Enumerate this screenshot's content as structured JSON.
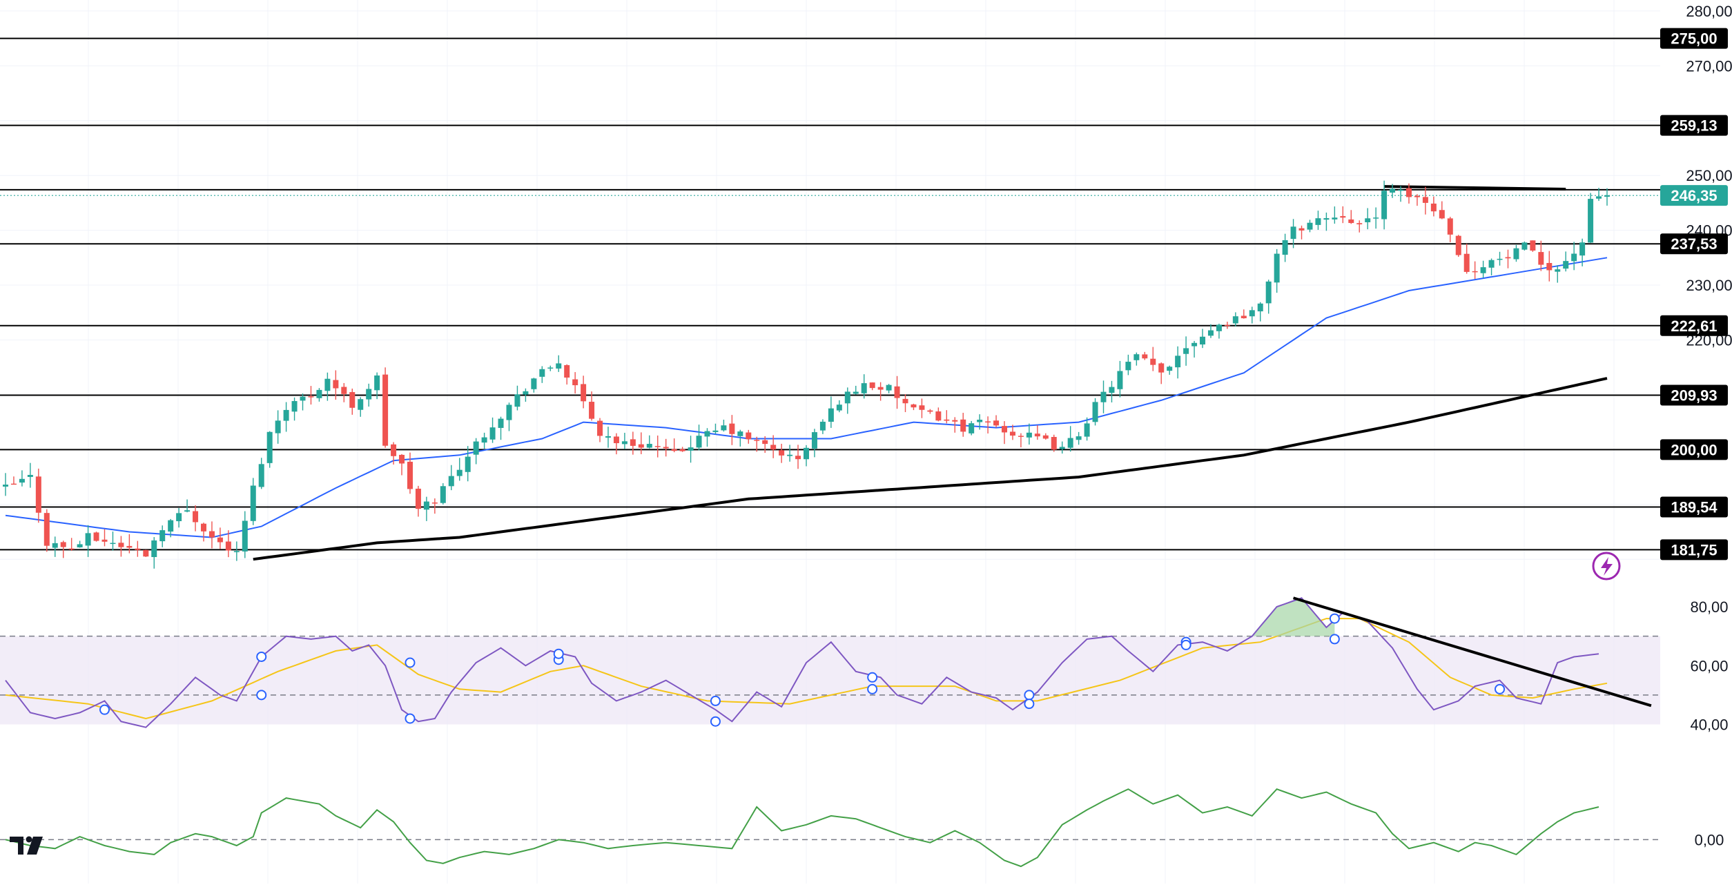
{
  "chart_data": [
    {
      "type": "candlestick",
      "panel": "price",
      "title": "",
      "xlabel": "",
      "ylabel": "",
      "ylim": [
        176,
        282
      ],
      "y_ticks": [
        {
          "value": 280,
          "label": "280,00"
        },
        {
          "value": 270,
          "label": "270,00"
        },
        {
          "value": 250,
          "label": "250,00"
        },
        {
          "value": 240,
          "label": "240,00"
        },
        {
          "value": 230,
          "label": "230,00"
        },
        {
          "value": 220,
          "label": "220,00"
        }
      ],
      "horizontal_levels": [
        {
          "value": 275.0,
          "label": "275,00"
        },
        {
          "value": 259.13,
          "label": "259,13"
        },
        {
          "value": 247.4,
          "label": ""
        },
        {
          "value": 237.53,
          "label": "237,53"
        },
        {
          "value": 222.61,
          "label": "222,61"
        },
        {
          "value": 209.93,
          "label": "209,93"
        },
        {
          "value": 200.0,
          "label": "200,00"
        },
        {
          "value": 189.54,
          "label": "189,54"
        },
        {
          "value": 181.75,
          "label": "181,75"
        }
      ],
      "last_price": {
        "value": 246.35,
        "label": "246,35"
      },
      "candle_anchors": [
        [
          0,
          193
        ],
        [
          3,
          195
        ],
        [
          5,
          183
        ],
        [
          8,
          182
        ],
        [
          10,
          184
        ],
        [
          13,
          183
        ],
        [
          17,
          181
        ],
        [
          19,
          186
        ],
        [
          22,
          189
        ],
        [
          25,
          184
        ],
        [
          28,
          181
        ],
        [
          30,
          193
        ],
        [
          32,
          203
        ],
        [
          34,
          208
        ],
        [
          37,
          210
        ],
        [
          39,
          213
        ],
        [
          42,
          208
        ],
        [
          45,
          213
        ],
        [
          46,
          201
        ],
        [
          48,
          197
        ],
        [
          50,
          189
        ],
        [
          52,
          191
        ],
        [
          55,
          197
        ],
        [
          58,
          203
        ],
        [
          61,
          208
        ],
        [
          64,
          213
        ],
        [
          67,
          216
        ],
        [
          69,
          211
        ],
        [
          72,
          203
        ],
        [
          75,
          201
        ],
        [
          78,
          201
        ],
        [
          81,
          199
        ],
        [
          84,
          202
        ],
        [
          87,
          204
        ],
        [
          90,
          202
        ],
        [
          93,
          200
        ],
        [
          96,
          198
        ],
        [
          98,
          203
        ],
        [
          101,
          209
        ],
        [
          104,
          212
        ],
        [
          107,
          211
        ],
        [
          110,
          207
        ],
        [
          113,
          206
        ],
        [
          116,
          204
        ],
        [
          119,
          205
        ],
        [
          122,
          203
        ],
        [
          125,
          202
        ],
        [
          128,
          200
        ],
        [
          130,
          203
        ],
        [
          132,
          208
        ],
        [
          135,
          214
        ],
        [
          137,
          217
        ],
        [
          140,
          214
        ],
        [
          143,
          219
        ],
        [
          146,
          222
        ],
        [
          149,
          224
        ],
        [
          152,
          226
        ],
        [
          154,
          236
        ],
        [
          156,
          240
        ],
        [
          159,
          242
        ],
        [
          162,
          243
        ],
        [
          164,
          241
        ],
        [
          166,
          242
        ],
        [
          167,
          248
        ],
        [
          168,
          247
        ],
        [
          171,
          246
        ],
        [
          173,
          244
        ],
        [
          175,
          240
        ],
        [
          177,
          232
        ],
        [
          179,
          234
        ],
        [
          182,
          235
        ],
        [
          184,
          237
        ],
        [
          186,
          234
        ],
        [
          188,
          233
        ],
        [
          190,
          236
        ],
        [
          191,
          238
        ],
        [
          192,
          245
        ],
        [
          193,
          246
        ],
        [
          194,
          246.4
        ]
      ],
      "sma_short": [
        [
          0,
          188
        ],
        [
          15,
          185
        ],
        [
          25,
          184
        ],
        [
          31,
          186
        ],
        [
          40,
          193
        ],
        [
          47,
          198
        ],
        [
          55,
          199
        ],
        [
          65,
          202
        ],
        [
          70,
          205
        ],
        [
          80,
          204
        ],
        [
          90,
          202
        ],
        [
          100,
          202
        ],
        [
          110,
          205
        ],
        [
          120,
          204
        ],
        [
          130,
          205
        ],
        [
          140,
          209
        ],
        [
          150,
          214
        ],
        [
          160,
          224
        ],
        [
          170,
          229
        ],
        [
          190,
          234
        ],
        [
          194,
          235
        ]
      ],
      "sma_long": [
        [
          30,
          180
        ],
        [
          45,
          183
        ],
        [
          55,
          184
        ],
        [
          70,
          187
        ],
        [
          90,
          191
        ],
        [
          110,
          193
        ],
        [
          130,
          195
        ],
        [
          150,
          199
        ],
        [
          170,
          205
        ],
        [
          194,
          213
        ]
      ],
      "trendline": {
        "x1": 167,
        "y1": 248,
        "x2": 189,
        "y2": 247.5
      }
    },
    {
      "type": "line",
      "panel": "rsi",
      "title": "",
      "ylim": [
        38,
        84
      ],
      "y_ticks": [
        {
          "value": 80,
          "label": "80,00"
        },
        {
          "value": 60,
          "label": "60,00"
        },
        {
          "value": 40,
          "label": "40,00"
        }
      ],
      "band": [
        40,
        70
      ],
      "reference_levels": [
        70,
        50
      ],
      "rsi_anchors": [
        [
          0,
          55
        ],
        [
          3,
          44
        ],
        [
          6,
          42
        ],
        [
          9,
          44
        ],
        [
          12,
          48
        ],
        [
          14,
          41
        ],
        [
          17,
          39
        ],
        [
          20,
          47
        ],
        [
          23,
          56
        ],
        [
          26,
          50
        ],
        [
          28,
          48
        ],
        [
          31,
          63
        ],
        [
          34,
          70
        ],
        [
          37,
          69
        ],
        [
          40,
          70
        ],
        [
          42,
          65
        ],
        [
          44,
          67
        ],
        [
          46,
          60
        ],
        [
          48,
          45
        ],
        [
          50,
          41
        ],
        [
          52,
          42
        ],
        [
          54,
          51
        ],
        [
          57,
          61
        ],
        [
          60,
          66
        ],
        [
          63,
          60
        ],
        [
          66,
          65
        ],
        [
          69,
          63
        ],
        [
          71,
          54
        ],
        [
          74,
          48
        ],
        [
          77,
          51
        ],
        [
          80,
          55
        ],
        [
          83,
          50
        ],
        [
          86,
          45
        ],
        [
          88,
          41
        ],
        [
          91,
          51
        ],
        [
          94,
          46
        ],
        [
          97,
          61
        ],
        [
          100,
          68
        ],
        [
          103,
          58
        ],
        [
          106,
          56
        ],
        [
          108,
          50
        ],
        [
          111,
          47
        ],
        [
          114,
          56
        ],
        [
          117,
          51
        ],
        [
          120,
          49
        ],
        [
          122,
          45
        ],
        [
          125,
          51
        ],
        [
          128,
          61
        ],
        [
          131,
          69
        ],
        [
          134,
          70
        ],
        [
          136,
          65
        ],
        [
          139,
          58
        ],
        [
          142,
          67
        ],
        [
          145,
          68
        ],
        [
          148,
          65
        ],
        [
          151,
          70
        ],
        [
          154,
          80
        ],
        [
          157,
          83
        ],
        [
          160,
          73
        ],
        [
          162,
          78
        ],
        [
          165,
          75
        ],
        [
          168,
          66
        ],
        [
          171,
          52
        ],
        [
          173,
          45
        ],
        [
          176,
          48
        ],
        [
          178,
          53
        ],
        [
          181,
          55
        ],
        [
          183,
          49
        ],
        [
          186,
          47
        ],
        [
          188,
          61
        ],
        [
          190,
          63
        ],
        [
          193,
          64
        ]
      ],
      "signal_anchors": [
        [
          0,
          50
        ],
        [
          10,
          47
        ],
        [
          17,
          42
        ],
        [
          25,
          48
        ],
        [
          33,
          58
        ],
        [
          40,
          65
        ],
        [
          45,
          67
        ],
        [
          50,
          57
        ],
        [
          55,
          52
        ],
        [
          60,
          51
        ],
        [
          66,
          58
        ],
        [
          70,
          60
        ],
        [
          77,
          53
        ],
        [
          85,
          48
        ],
        [
          95,
          47
        ],
        [
          105,
          53
        ],
        [
          115,
          53
        ],
        [
          120,
          48
        ],
        [
          125,
          48
        ],
        [
          135,
          55
        ],
        [
          145,
          66
        ],
        [
          152,
          68
        ],
        [
          160,
          76
        ],
        [
          164,
          76
        ],
        [
          170,
          68
        ],
        [
          175,
          56
        ],
        [
          180,
          50
        ],
        [
          185,
          49
        ],
        [
          190,
          52
        ],
        [
          194,
          54
        ]
      ],
      "divergence_line": {
        "x1": 156,
        "y1": 83,
        "x2": 196,
        "y2": 52
      },
      "markers": [
        [
          12,
          45
        ],
        [
          31,
          63
        ],
        [
          31,
          50
        ],
        [
          49,
          61
        ],
        [
          49,
          42
        ],
        [
          67,
          62
        ],
        [
          67,
          64
        ],
        [
          86,
          48
        ],
        [
          86,
          41
        ],
        [
          105,
          56
        ],
        [
          105,
          52
        ],
        [
          124,
          50
        ],
        [
          124,
          47
        ],
        [
          143,
          68
        ],
        [
          143,
          67
        ],
        [
          161,
          76
        ],
        [
          161,
          69
        ],
        [
          181,
          52
        ]
      ]
    },
    {
      "type": "line",
      "panel": "oscillator",
      "title": "",
      "ylim": [
        -12,
        21
      ],
      "y_ticks": [
        {
          "value": 0,
          "label": "0,00"
        }
      ],
      "reference_levels": [
        0
      ],
      "osc_anchors": [
        [
          0,
          0
        ],
        [
          3,
          -2
        ],
        [
          6,
          -3
        ],
        [
          9,
          1
        ],
        [
          12,
          -2
        ],
        [
          15,
          -4
        ],
        [
          18,
          -5
        ],
        [
          20,
          -1
        ],
        [
          23,
          2
        ],
        [
          25,
          1
        ],
        [
          28,
          -2
        ],
        [
          30,
          1
        ],
        [
          31,
          9
        ],
        [
          34,
          14
        ],
        [
          36,
          13
        ],
        [
          38,
          12
        ],
        [
          40,
          8
        ],
        [
          43,
          4
        ],
        [
          45,
          10
        ],
        [
          47,
          6
        ],
        [
          49,
          -1
        ],
        [
          51,
          -7
        ],
        [
          53,
          -8
        ],
        [
          55,
          -6
        ],
        [
          58,
          -4
        ],
        [
          61,
          -5
        ],
        [
          64,
          -3
        ],
        [
          67,
          0
        ],
        [
          70,
          -1
        ],
        [
          73,
          -3
        ],
        [
          76,
          -2
        ],
        [
          80,
          -1
        ],
        [
          84,
          -2
        ],
        [
          88,
          -3
        ],
        [
          91,
          11
        ],
        [
          94,
          3
        ],
        [
          97,
          5
        ],
        [
          100,
          8
        ],
        [
          103,
          7
        ],
        [
          106,
          4
        ],
        [
          109,
          1
        ],
        [
          112,
          -1
        ],
        [
          115,
          3
        ],
        [
          118,
          -1
        ],
        [
          121,
          -7
        ],
        [
          123,
          -9
        ],
        [
          125,
          -6
        ],
        [
          128,
          5
        ],
        [
          131,
          10
        ],
        [
          133,
          13
        ],
        [
          136,
          17
        ],
        [
          139,
          12
        ],
        [
          142,
          15
        ],
        [
          145,
          9
        ],
        [
          148,
          11
        ],
        [
          151,
          8
        ],
        [
          154,
          17
        ],
        [
          157,
          14
        ],
        [
          160,
          16
        ],
        [
          163,
          12
        ],
        [
          166,
          9
        ],
        [
          168,
          2
        ],
        [
          170,
          -3
        ],
        [
          173,
          -1
        ],
        [
          176,
          -4
        ],
        [
          178,
          -1
        ],
        [
          180,
          -2
        ],
        [
          183,
          -5
        ],
        [
          186,
          2
        ],
        [
          188,
          6
        ],
        [
          190,
          9
        ],
        [
          193,
          11
        ]
      ]
    }
  ],
  "colors": {
    "up_candle": "#26a69a",
    "down_candle": "#ef5350",
    "sma_short": "#2962ff",
    "sma_long": "#000000",
    "rsi_line": "#7e57c2",
    "rsi_signal": "#f5c518",
    "rsi_band": "#ede7f6",
    "oscillator": "#43a047",
    "level_line": "#000000",
    "last_price_badge": "#26a69a",
    "grid": "#f0f3fa",
    "axis_text": "#131722",
    "replay_icon": "#9c27b0"
  },
  "icons": {
    "logo": "tradingview-logo-icon",
    "replay": "lightning-replay-icon"
  }
}
